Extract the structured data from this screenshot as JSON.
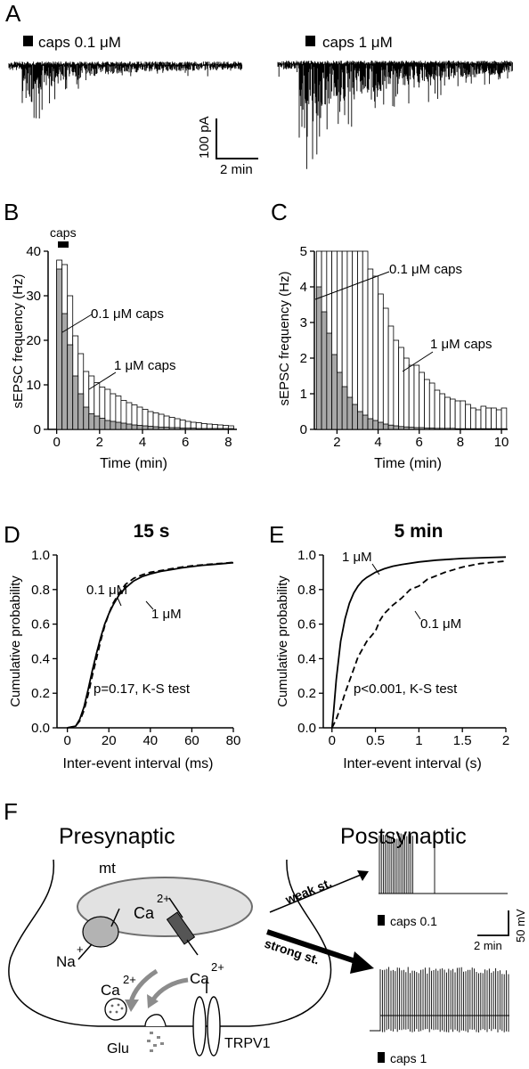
{
  "panels": {
    "A": {
      "letter": "A",
      "left_label": "caps 0.1 μM",
      "right_label": "caps 1 μM",
      "scale_y": "100 pA",
      "scale_x": "2 min"
    },
    "F": {
      "letter": "F",
      "pre_title": "Presynaptic",
      "post_title": "Postsynaptic",
      "mt": "mt",
      "ca": "Ca",
      "charge2": "2+",
      "na": "Na",
      "plus": "+",
      "glu": "Glu",
      "trpv1": "TRPV1",
      "weak": "weak st.",
      "strong": "strong st.",
      "caps01": "caps 0.1",
      "caps1": "caps 1",
      "scale_y": "50 mV",
      "scale_x": "2 min"
    }
  },
  "colors": {
    "gray_bar": "#a8a8a8",
    "white_bar": "#ffffff",
    "diagram_fill": "#dcdcdc",
    "arrow_gray": "#8c8c8c"
  },
  "chart_data": [
    {
      "id": "B",
      "letter": "B",
      "type": "bar",
      "xlabel": "Time (min)",
      "ylabel": "sEPSC frequency (Hz)",
      "xlim": [
        -0.4,
        8.4
      ],
      "ylim": [
        0,
        40
      ],
      "xticks": [
        0,
        2,
        4,
        6,
        8
      ],
      "yticks": [
        0,
        10,
        20,
        30,
        40
      ],
      "bar_width_min": 0.25,
      "caps_bar_label": "caps",
      "series": [
        {
          "name": "1 μM caps",
          "x": [
            0,
            0.25,
            0.5,
            0.75,
            1,
            1.25,
            1.5,
            1.75,
            2,
            2.25,
            2.5,
            2.75,
            3,
            3.25,
            3.5,
            3.75,
            4,
            4.25,
            4.5,
            4.75,
            5,
            5.25,
            5.5,
            5.75,
            6,
            6.25,
            6.5,
            6.75,
            7,
            7.25,
            7.5,
            7.75,
            8
          ],
          "values": [
            38,
            37,
            30,
            21,
            17,
            13,
            12,
            10.5,
            9.5,
            9,
            8,
            7.5,
            6.5,
            6,
            5.5,
            5,
            4.5,
            4,
            3.7,
            3.4,
            3,
            2.7,
            2.4,
            2.1,
            1.8,
            1.6,
            1.5,
            1.3,
            1.2,
            1.1,
            1,
            0.9,
            0.8
          ]
        },
        {
          "name": "0.1 μM caps",
          "x": [
            0,
            0.25,
            0.5,
            0.75,
            1,
            1.25,
            1.5,
            1.75,
            2,
            2.25,
            2.5,
            2.75,
            3,
            3.25,
            3.5,
            3.75,
            4,
            4.25,
            4.5,
            4.75,
            5,
            5.25,
            5.5,
            5.75,
            6,
            6.25,
            6.5,
            6.75,
            7,
            7.25,
            7.5,
            7.75,
            8
          ],
          "values": [
            36,
            26,
            19,
            12,
            8,
            5,
            3.5,
            3,
            2.5,
            2,
            1.8,
            1.6,
            1.4,
            1.2,
            1,
            0.9,
            0.8,
            0.7,
            0.6,
            0.5,
            0.5,
            0.4,
            0.4,
            0.3,
            0.3,
            0.3,
            0.2,
            0.2,
            0.2,
            0.2,
            0.2,
            0.2,
            0.2
          ]
        }
      ]
    },
    {
      "id": "C",
      "letter": "C",
      "type": "bar",
      "xlabel": "Time (min)",
      "ylabel": "sEPSC frequency (Hz)",
      "xlim": [
        0.9,
        10.3
      ],
      "ylim": [
        0,
        5
      ],
      "xticks": [
        2,
        4,
        6,
        8,
        10
      ],
      "yticks": [
        0,
        1,
        2,
        3,
        4,
        5
      ],
      "bar_width_min": 0.25,
      "series": [
        {
          "name": "1 μM caps",
          "x": [
            1,
            1.25,
            1.5,
            1.75,
            2,
            2.25,
            2.5,
            2.75,
            3,
            3.25,
            3.5,
            3.75,
            4,
            4.25,
            4.5,
            4.75,
            5,
            5.25,
            5.5,
            5.75,
            6,
            6.25,
            6.5,
            6.75,
            7,
            7.25,
            7.5,
            7.75,
            8,
            8.25,
            8.5,
            8.75,
            9,
            9.25,
            9.5,
            9.75,
            10
          ],
          "values": [
            5,
            5,
            5,
            5,
            5,
            5,
            5,
            5,
            5,
            5,
            4.5,
            4.3,
            3.8,
            3.4,
            2.9,
            2.5,
            2.3,
            2.0,
            1.8,
            1.8,
            1.6,
            1.4,
            1.3,
            1.1,
            1.0,
            0.9,
            0.85,
            0.8,
            0.8,
            0.7,
            0.6,
            0.55,
            0.65,
            0.6,
            0.6,
            0.55,
            0.6
          ]
        },
        {
          "name": "0.1 μM caps",
          "x": [
            1,
            1.25,
            1.5,
            1.75,
            2,
            2.25,
            2.5,
            2.75,
            3,
            3.25,
            3.5,
            3.75,
            4,
            4.25,
            4.5,
            4.75,
            5,
            5.25,
            5.5,
            5.75,
            6,
            6.25,
            6.5,
            6.75,
            7,
            7.25,
            7.5,
            7.75,
            8,
            8.25,
            8.5,
            8.75,
            9,
            9.25,
            9.5,
            9.75,
            10
          ],
          "values": [
            4.0,
            3.3,
            2.7,
            2.1,
            1.6,
            1.2,
            0.9,
            0.7,
            0.5,
            0.4,
            0.3,
            0.25,
            0.2,
            0.15,
            0.12,
            0.1,
            0.08,
            0.07,
            0.06,
            0.05,
            0.05,
            0.04,
            0.04,
            0.03,
            0.03,
            0.03,
            0.03,
            0.02,
            0.02,
            0.02,
            0.02,
            0.02,
            0.02,
            0.02,
            0.02,
            0.02,
            0.02
          ]
        }
      ]
    },
    {
      "id": "D",
      "letter": "D",
      "type": "line",
      "title": "15 s",
      "xlabel": "Inter-event interval (ms)",
      "ylabel": "Cumulative probability",
      "xlim": [
        -5,
        80
      ],
      "ylim": [
        0,
        1
      ],
      "xticks": [
        0,
        20,
        40,
        60,
        80
      ],
      "yticks": [
        0,
        0.2,
        0.4,
        0.6,
        0.8,
        1.0
      ],
      "annotation": "p=0.17, K-S test",
      "series": [
        {
          "name": "1 μM",
          "style": "solid",
          "x": [
            0,
            4,
            6,
            8,
            10,
            12,
            14,
            16,
            18,
            20,
            22,
            25,
            28,
            32,
            36,
            40,
            45,
            50,
            55,
            60,
            65,
            70,
            75,
            80
          ],
          "y": [
            0,
            0.01,
            0.05,
            0.12,
            0.22,
            0.33,
            0.43,
            0.52,
            0.6,
            0.66,
            0.71,
            0.77,
            0.81,
            0.85,
            0.875,
            0.89,
            0.905,
            0.915,
            0.925,
            0.933,
            0.94,
            0.945,
            0.95,
            0.955
          ]
        },
        {
          "name": "0.1 μM",
          "style": "dashed",
          "x": [
            0,
            4,
            6,
            8,
            10,
            12,
            14,
            16,
            18,
            20,
            22,
            25,
            28,
            32,
            36,
            40,
            45,
            50,
            55,
            60,
            65,
            70,
            75,
            80
          ],
          "y": [
            0,
            0.01,
            0.04,
            0.1,
            0.19,
            0.3,
            0.4,
            0.5,
            0.59,
            0.66,
            0.72,
            0.78,
            0.83,
            0.865,
            0.885,
            0.9,
            0.91,
            0.92,
            0.93,
            0.937,
            0.943,
            0.948,
            0.952,
            0.957
          ]
        }
      ]
    },
    {
      "id": "E",
      "letter": "E",
      "type": "line",
      "title": "5 min",
      "xlabel": "Inter-event interval (s)",
      "ylabel": "Cumulative probability",
      "xlim": [
        -0.1,
        2
      ],
      "ylim": [
        0,
        1
      ],
      "xticks": [
        0,
        0.5,
        1,
        1.5,
        2
      ],
      "xtick_labels": [
        "0",
        "0.5",
        "1",
        "1.5",
        "2"
      ],
      "yticks": [
        0,
        0.2,
        0.4,
        0.6,
        0.8,
        1.0
      ],
      "annotation": "p<0.001, K-S test",
      "series": [
        {
          "name": "1 μM",
          "style": "solid",
          "x": [
            0,
            0.02,
            0.05,
            0.1,
            0.15,
            0.2,
            0.25,
            0.3,
            0.35,
            0.4,
            0.5,
            0.6,
            0.7,
            0.8,
            1.0,
            1.2,
            1.5,
            1.8,
            2.0
          ],
          "y": [
            0,
            0.1,
            0.28,
            0.5,
            0.63,
            0.72,
            0.78,
            0.82,
            0.85,
            0.87,
            0.9,
            0.92,
            0.935,
            0.945,
            0.96,
            0.97,
            0.98,
            0.985,
            0.988
          ]
        },
        {
          "name": "0.1 μM",
          "style": "dashed",
          "x": [
            0,
            0.05,
            0.1,
            0.15,
            0.2,
            0.25,
            0.3,
            0.4,
            0.5,
            0.55,
            0.6,
            0.7,
            0.8,
            0.9,
            1.0,
            1.1,
            1.2,
            1.3,
            1.5,
            1.7,
            2.0
          ],
          "y": [
            0,
            0.05,
            0.12,
            0.2,
            0.27,
            0.34,
            0.41,
            0.5,
            0.56,
            0.62,
            0.66,
            0.71,
            0.75,
            0.8,
            0.82,
            0.86,
            0.88,
            0.9,
            0.93,
            0.95,
            0.965
          ]
        }
      ]
    }
  ]
}
